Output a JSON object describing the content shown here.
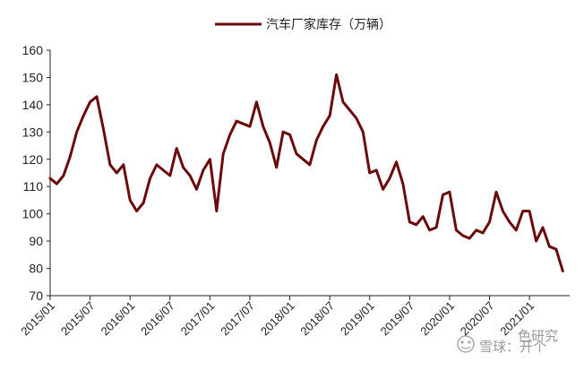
{
  "chart_data": {
    "type": "line",
    "legend_position": "top-center",
    "grid": false,
    "ylim": [
      70,
      160
    ],
    "yticks": [
      70,
      80,
      90,
      100,
      110,
      120,
      130,
      140,
      150,
      160
    ],
    "x_tick_labels": [
      "2015/01",
      "2015/07",
      "2016/01",
      "2016/07",
      "2017/01",
      "2017/07",
      "2018/01",
      "2018/07",
      "2019/01",
      "2019/07",
      "2020/01",
      "2020/07",
      "2021/01"
    ],
    "x": [
      "2015/01",
      "2015/02",
      "2015/03",
      "2015/04",
      "2015/05",
      "2015/06",
      "2015/07",
      "2015/08",
      "2015/09",
      "2015/10",
      "2015/11",
      "2015/12",
      "2016/01",
      "2016/02",
      "2016/03",
      "2016/04",
      "2016/05",
      "2016/06",
      "2016/07",
      "2016/08",
      "2016/09",
      "2016/10",
      "2016/11",
      "2016/12",
      "2017/01",
      "2017/02",
      "2017/03",
      "2017/04",
      "2017/05",
      "2017/06",
      "2017/07",
      "2017/08",
      "2017/09",
      "2017/10",
      "2017/11",
      "2017/12",
      "2018/01",
      "2018/02",
      "2018/03",
      "2018/04",
      "2018/05",
      "2018/06",
      "2018/07",
      "2018/08",
      "2018/09",
      "2018/10",
      "2018/11",
      "2018/12",
      "2019/01",
      "2019/02",
      "2019/03",
      "2019/04",
      "2019/05",
      "2019/06",
      "2019/07",
      "2019/08",
      "2019/09",
      "2019/10",
      "2019/11",
      "2019/12",
      "2020/01",
      "2020/02",
      "2020/03",
      "2020/04",
      "2020/05",
      "2020/06",
      "2020/07",
      "2020/08",
      "2020/09",
      "2020/10",
      "2020/11",
      "2020/12",
      "2021/01",
      "2021/02",
      "2021/03",
      "2021/04",
      "2021/05",
      "2021/06"
    ],
    "series": [
      {
        "name": "汽车厂家库存（万辆）",
        "color": "#6b0a0a",
        "values": [
          113,
          111,
          114,
          121,
          130,
          136,
          141,
          143,
          131,
          118,
          115,
          118,
          105,
          101,
          104,
          113,
          118,
          116,
          114,
          124,
          117,
          114,
          109,
          116,
          120,
          101,
          122,
          129,
          134,
          133,
          132,
          141,
          132,
          126,
          117,
          130,
          129,
          122,
          120,
          118,
          127,
          132,
          136,
          151,
          141,
          138,
          135,
          130,
          115,
          116,
          109,
          113,
          119,
          111,
          97,
          96,
          99,
          94,
          95,
          107,
          108,
          94,
          92,
          91,
          94,
          93,
          97,
          108,
          101,
          97,
          94,
          101,
          101,
          90,
          95,
          88,
          87,
          79
        ]
      }
    ]
  },
  "watermark": {
    "text": "雪球：开个",
    "text_behind": "色研究"
  }
}
